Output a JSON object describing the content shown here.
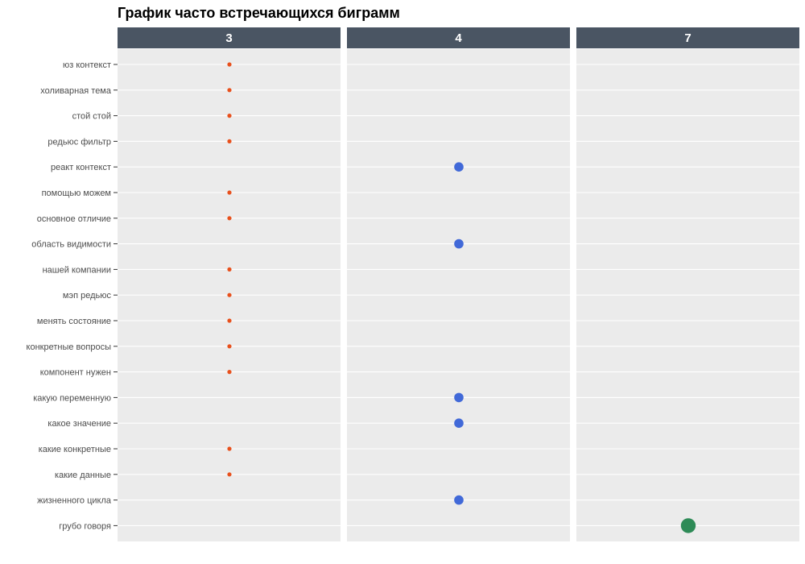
{
  "chart_data": {
    "type": "scatter",
    "title": "График часто встречающихся биграмм",
    "facets": [
      "3",
      "4",
      "7"
    ],
    "categories": [
      "юз контекст",
      "холиварная тема",
      "стой стой",
      "редьюс фильтр",
      "реакт контекст",
      "помощью можем",
      "основное отличие",
      "область видимости",
      "нашей компании",
      "мэп редьюс",
      "менять состояние",
      "конкретные вопросы",
      "компонент нужен",
      "какую переменную",
      "какое значение",
      "какие конкретные",
      "какие данные",
      "жизненного цикла",
      "грубо говоря"
    ],
    "values": [
      3,
      3,
      3,
      3,
      4,
      3,
      3,
      4,
      3,
      3,
      3,
      3,
      3,
      4,
      4,
      3,
      3,
      4,
      7
    ],
    "colors": {
      "3": "#E8501C",
      "4": "#4169D8",
      "7": "#2E8B57"
    },
    "grid": true,
    "legend": "none"
  }
}
